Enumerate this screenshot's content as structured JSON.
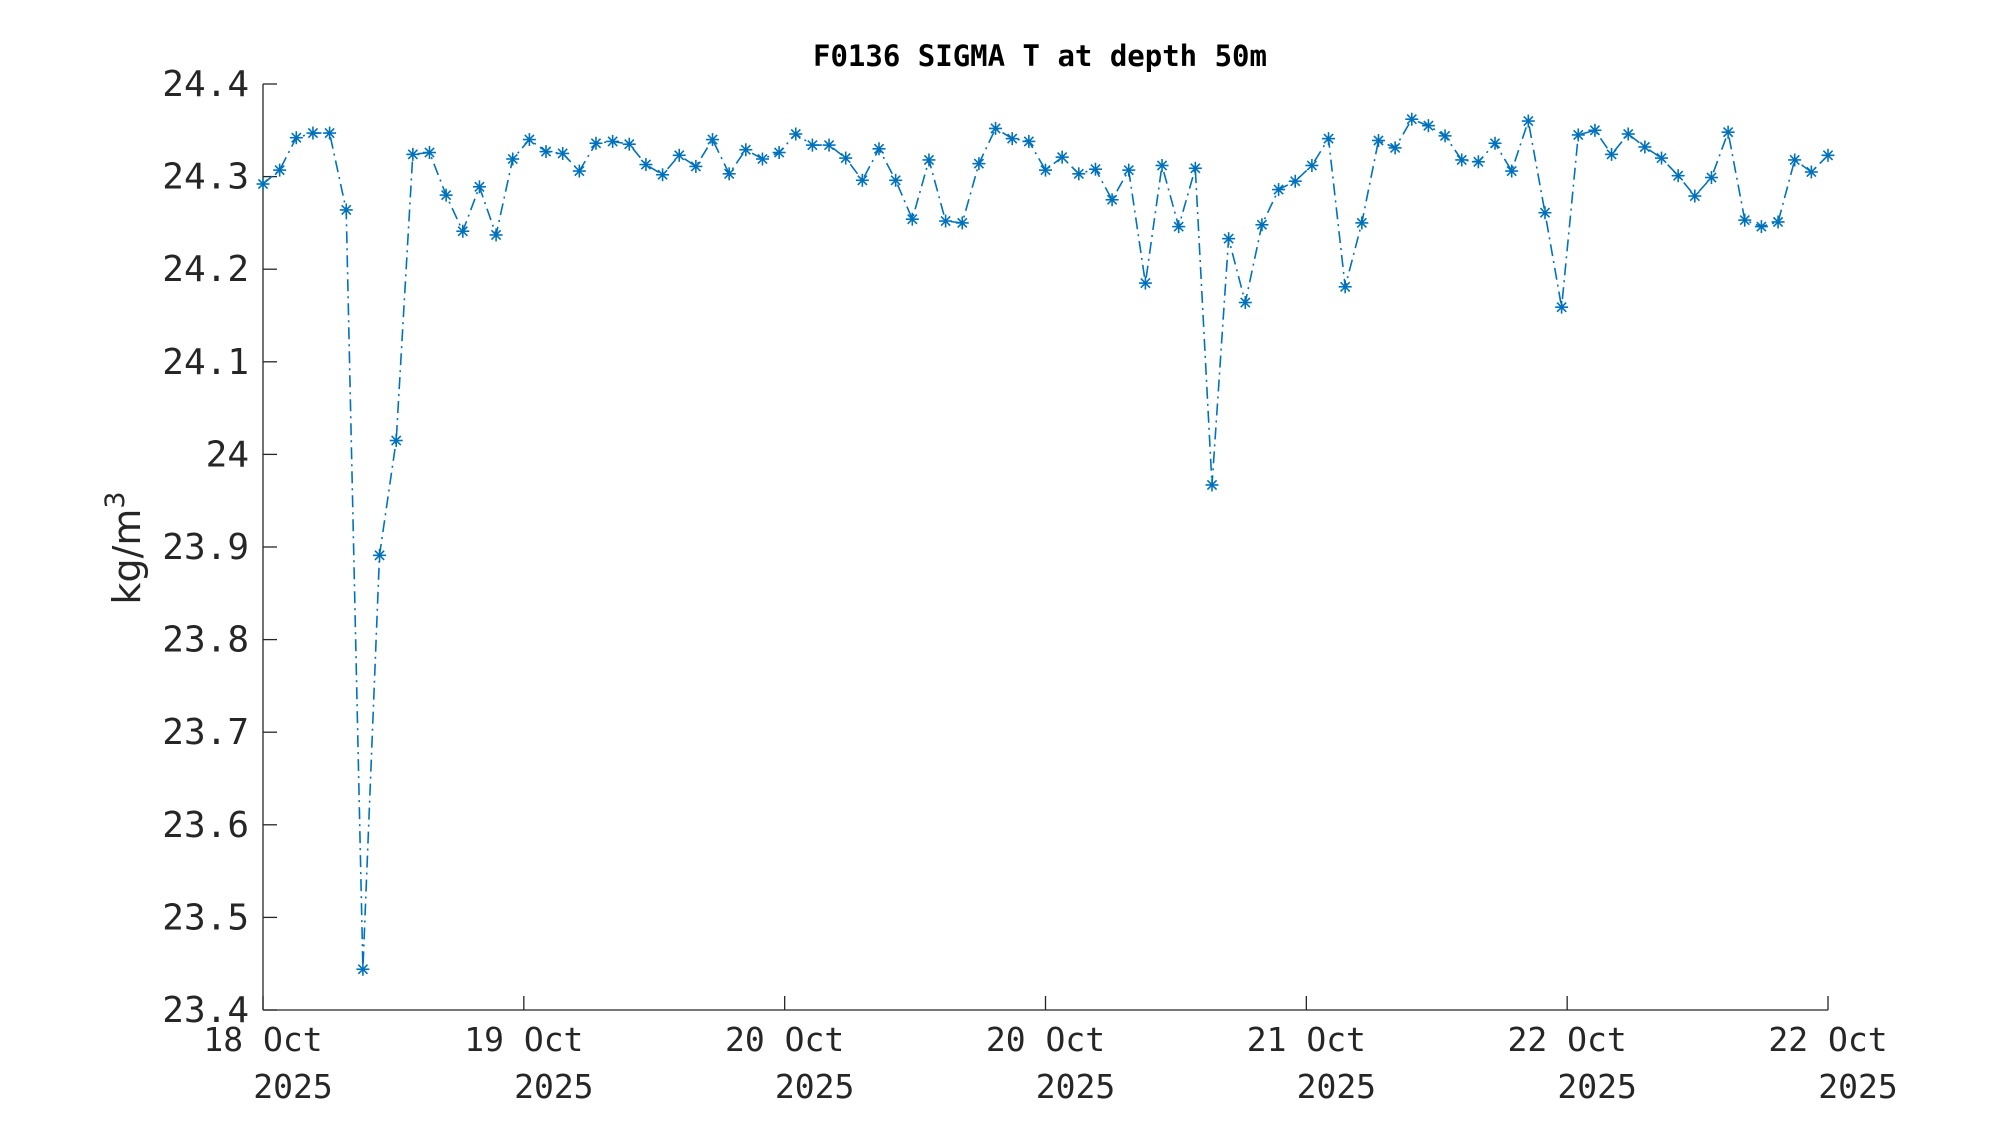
{
  "chart_data": {
    "type": "line",
    "title": "F0136 SIGMA T at depth 50m",
    "ylabel": "kg/m",
    "ylabel_superscript": "3",
    "xlabel": "",
    "ylim": [
      23.4,
      24.4
    ],
    "yticks": [
      "23.4",
      "23.5",
      "23.6",
      "23.7",
      "23.8",
      "23.9",
      "24",
      "24.1",
      "24.2",
      "24.3",
      "24.4"
    ],
    "xlim_days": [
      0,
      6
    ],
    "xticks": [
      {
        "line1": "18 Oct",
        "line2": "2025",
        "day": 0
      },
      {
        "line1": "19 Oct",
        "line2": "2025",
        "day": 1
      },
      {
        "line1": "20 Oct",
        "line2": "2025",
        "day": 2
      },
      {
        "line1": "20 Oct",
        "line2": "2025",
        "day": 3
      },
      {
        "line1": "21 Oct",
        "line2": "2025",
        "day": 4
      },
      {
        "line1": "22 Oct",
        "line2": "2025",
        "day": 5
      },
      {
        "line1": "22 Oct",
        "line2": "2025",
        "day": 6
      }
    ],
    "color": "#0072BD",
    "line_style": "dash-dot",
    "marker": "asterisk",
    "grid": false,
    "series": [
      {
        "values": [
          24.292,
          24.307,
          24.342,
          24.347,
          24.347,
          24.264,
          23.444,
          23.891,
          24.015,
          24.324,
          24.326,
          24.28,
          24.241,
          24.289,
          24.237,
          24.319,
          24.34,
          24.327,
          24.325,
          24.306,
          24.336,
          24.338,
          24.335,
          24.313,
          24.302,
          24.323,
          24.311,
          24.34,
          24.303,
          24.329,
          24.319,
          24.326,
          24.346,
          24.334,
          24.334,
          24.32,
          24.296,
          24.33,
          24.296,
          24.254,
          24.318,
          24.252,
          24.25,
          24.314,
          24.352,
          24.341,
          24.338,
          24.307,
          24.321,
          24.303,
          24.308,
          24.275,
          24.307,
          24.185,
          24.312,
          24.246,
          24.309,
          23.967,
          24.233,
          24.164,
          24.248,
          24.286,
          24.295,
          24.312,
          24.341,
          24.181,
          24.25,
          24.339,
          24.331,
          24.362,
          24.355,
          24.344,
          24.318,
          24.316,
          24.336,
          24.306,
          24.36,
          24.261,
          24.159,
          24.345,
          24.35,
          24.324,
          24.346,
          24.332,
          24.32,
          24.301,
          24.279,
          24.299,
          24.348,
          24.253,
          24.246,
          24.251,
          24.318,
          24.305,
          24.323
        ]
      }
    ]
  }
}
